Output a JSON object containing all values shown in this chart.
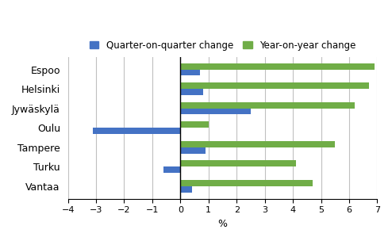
{
  "cities": [
    "Espoo",
    "Helsinki",
    "Jywäskylä",
    "Oulu",
    "Tampere",
    "Turku",
    "Vantaa"
  ],
  "quarter_on_quarter": [
    0.7,
    0.8,
    2.5,
    -3.1,
    0.9,
    -0.6,
    0.4
  ],
  "year_on_year": [
    6.9,
    6.7,
    6.2,
    1.0,
    5.5,
    4.1,
    4.7
  ],
  "bar_color_quarter": "#4472c4",
  "bar_color_year": "#70ad47",
  "xlabel": "%",
  "xlim": [
    -4,
    7
  ],
  "xticks": [
    -4,
    -3,
    -2,
    -1,
    0,
    1,
    2,
    3,
    4,
    5,
    6,
    7
  ],
  "legend_quarter": "Quarter-on-quarter change",
  "legend_year": "Year-on-year change",
  "bar_height": 0.32,
  "background_color": "#ffffff",
  "grid_color": "#c0c0c0"
}
